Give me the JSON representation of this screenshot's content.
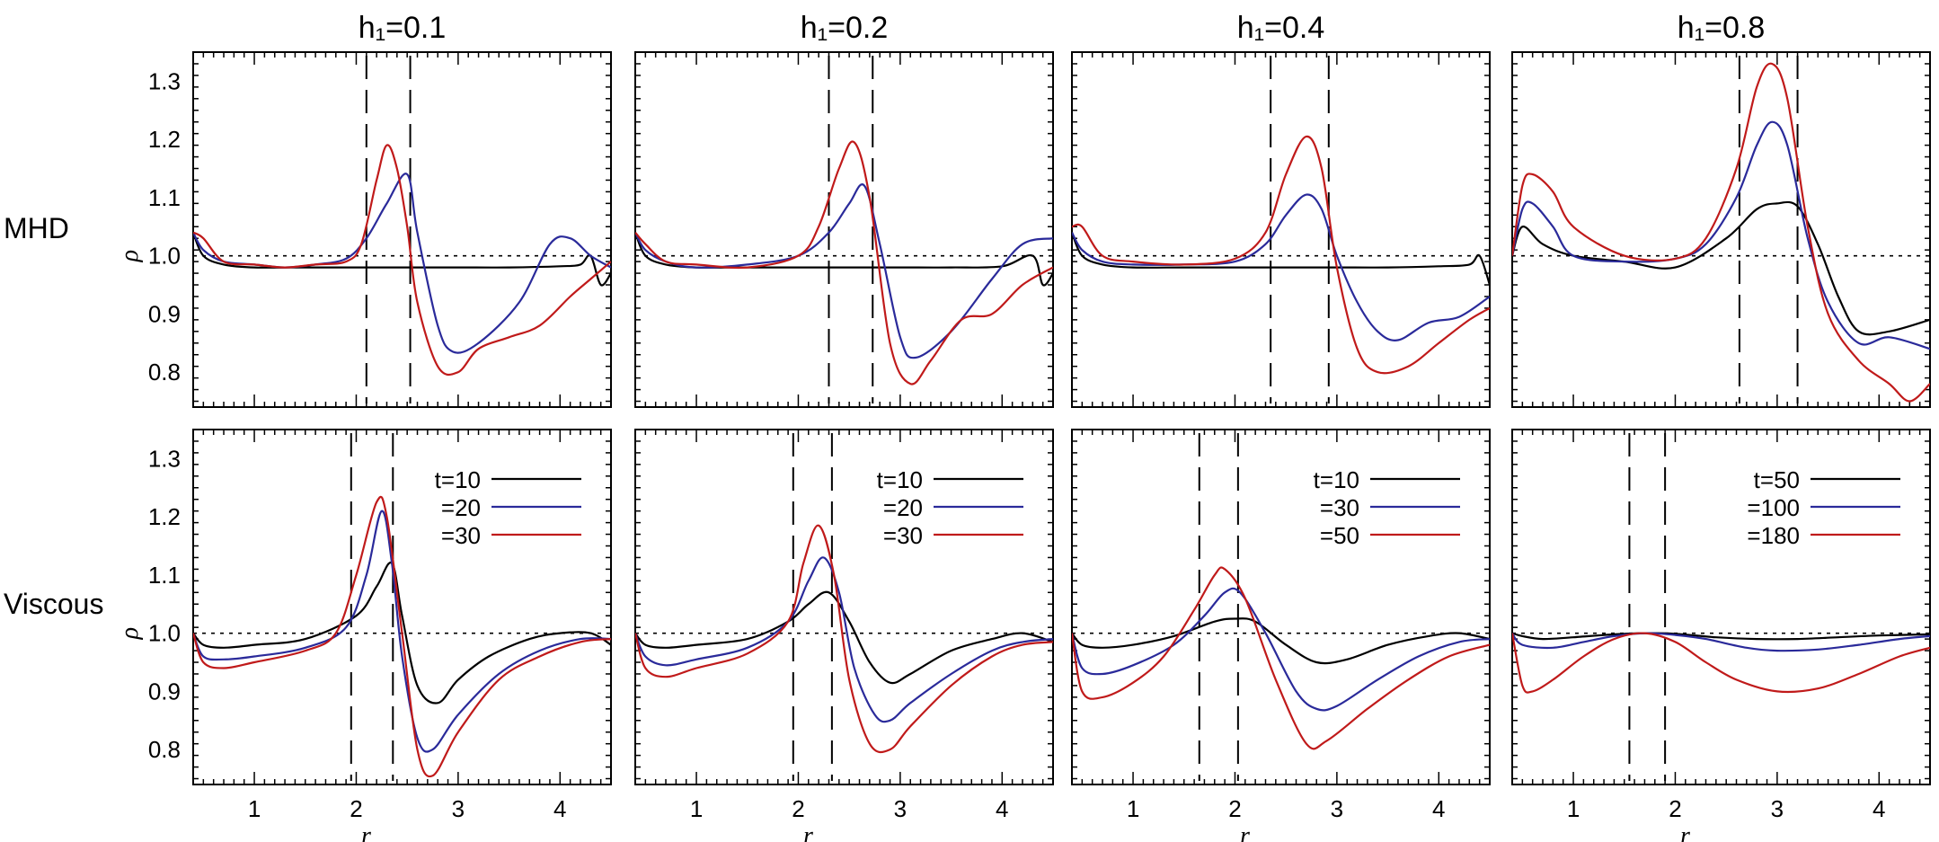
{
  "figure": {
    "row_labels": [
      "MHD",
      "Viscous"
    ],
    "column_titles": [
      "h₁=0.1",
      "h₁=0.2",
      "h₁=0.4",
      "h₁=0.8"
    ],
    "ylabel": "ρ",
    "xlabel": "r",
    "x_ticks": [
      "1",
      "2",
      "3",
      "4"
    ],
    "y_ticks": [
      "0.8",
      "0.9",
      "1.0",
      "1.1",
      "1.2",
      "1.3"
    ]
  },
  "colors": {
    "t1": "#000000",
    "t2": "#2a2a9a",
    "t3": "#c01a1a"
  },
  "chart_data": [
    {
      "type": "line",
      "row": "MHD",
      "title": "h₁=0.1",
      "xlim": [
        0.4,
        4.5
      ],
      "ylim": [
        0.74,
        1.35
      ],
      "reference_y": 1.0,
      "vlines": [
        2.1,
        2.53
      ],
      "series": [
        {
          "x": [
            0.4,
            0.5,
            0.7,
            1.0,
            1.5,
            2.0,
            2.5,
            3.0,
            3.5,
            4.0,
            4.2,
            4.3,
            4.4,
            4.5
          ],
          "y": [
            1.04,
            1.0,
            0.985,
            0.98,
            0.98,
            0.98,
            0.98,
            0.98,
            0.98,
            0.982,
            0.985,
            1.0,
            0.95,
            0.97
          ]
        },
        {
          "x": [
            0.4,
            0.5,
            0.7,
            1.0,
            1.3,
            1.6,
            1.9,
            2.1,
            2.3,
            2.5,
            2.6,
            2.8,
            2.95,
            3.2,
            3.6,
            3.9,
            4.1,
            4.3,
            4.5
          ],
          "y": [
            1.04,
            1.01,
            0.99,
            0.985,
            0.98,
            0.985,
            0.995,
            1.03,
            1.09,
            1.14,
            1.04,
            0.88,
            0.835,
            0.85,
            0.92,
            1.02,
            1.03,
            1.0,
            0.98
          ]
        },
        {
          "x": [
            0.4,
            0.5,
            0.7,
            1.0,
            1.3,
            1.6,
            1.9,
            2.05,
            2.2,
            2.3,
            2.4,
            2.5,
            2.6,
            2.8,
            3.0,
            3.2,
            3.5,
            3.8,
            4.1,
            4.3,
            4.5
          ],
          "y": [
            1.04,
            1.03,
            0.99,
            0.985,
            0.98,
            0.985,
            0.99,
            1.02,
            1.13,
            1.19,
            1.15,
            1.05,
            0.92,
            0.81,
            0.8,
            0.84,
            0.86,
            0.88,
            0.93,
            0.96,
            0.99
          ]
        }
      ]
    },
    {
      "type": "line",
      "row": "MHD",
      "title": "h₁=0.2",
      "xlim": [
        0.4,
        4.5
      ],
      "ylim": [
        0.74,
        1.35
      ],
      "reference_y": 1.0,
      "vlines": [
        2.3,
        2.73
      ],
      "series": [
        {
          "x": [
            0.4,
            0.5,
            0.7,
            1.0,
            1.5,
            2.0,
            2.5,
            3.0,
            3.5,
            4.0,
            4.3,
            4.4,
            4.5
          ],
          "y": [
            1.04,
            1.0,
            0.985,
            0.98,
            0.98,
            0.98,
            0.98,
            0.98,
            0.98,
            0.982,
            1.0,
            0.95,
            0.97
          ]
        },
        {
          "x": [
            0.4,
            0.5,
            0.7,
            1.0,
            1.5,
            2.0,
            2.3,
            2.5,
            2.65,
            2.8,
            3.0,
            3.15,
            3.5,
            3.9,
            4.2,
            4.5
          ],
          "y": [
            1.04,
            1.01,
            0.99,
            0.98,
            0.985,
            1.0,
            1.04,
            1.09,
            1.12,
            1.02,
            0.86,
            0.825,
            0.87,
            0.96,
            1.02,
            1.03
          ]
        },
        {
          "x": [
            0.4,
            0.5,
            0.7,
            1.0,
            1.5,
            2.0,
            2.2,
            2.4,
            2.55,
            2.7,
            2.9,
            3.1,
            3.3,
            3.6,
            3.9,
            4.2,
            4.5
          ],
          "y": [
            1.04,
            1.02,
            0.99,
            0.985,
            0.98,
            1.0,
            1.05,
            1.15,
            1.195,
            1.1,
            0.85,
            0.78,
            0.82,
            0.89,
            0.9,
            0.95,
            0.98
          ]
        }
      ]
    },
    {
      "type": "line",
      "row": "MHD",
      "title": "h₁=0.4",
      "xlim": [
        0.4,
        4.5
      ],
      "ylim": [
        0.74,
        1.35
      ],
      "reference_y": 1.0,
      "vlines": [
        2.35,
        2.92
      ],
      "series": [
        {
          "x": [
            0.4,
            0.5,
            0.7,
            1.0,
            1.5,
            2.0,
            2.5,
            3.0,
            3.5,
            4.0,
            4.3,
            4.4,
            4.5
          ],
          "y": [
            1.04,
            1.0,
            0.985,
            0.98,
            0.98,
            0.98,
            0.98,
            0.98,
            0.98,
            0.982,
            0.985,
            1.0,
            0.95
          ]
        },
        {
          "x": [
            0.4,
            0.5,
            0.7,
            1.0,
            1.5,
            2.0,
            2.3,
            2.5,
            2.7,
            2.85,
            3.0,
            3.2,
            3.4,
            3.6,
            3.9,
            4.2,
            4.5
          ],
          "y": [
            1.04,
            1.01,
            0.99,
            0.985,
            0.985,
            0.99,
            1.02,
            1.07,
            1.105,
            1.08,
            1.0,
            0.92,
            0.87,
            0.855,
            0.885,
            0.895,
            0.93
          ]
        },
        {
          "x": [
            0.4,
            0.5,
            0.7,
            1.0,
            1.5,
            2.0,
            2.3,
            2.5,
            2.7,
            2.85,
            3.0,
            3.2,
            3.4,
            3.7,
            4.0,
            4.3,
            4.5
          ],
          "y": [
            1.05,
            1.05,
            1.0,
            0.99,
            0.985,
            0.995,
            1.04,
            1.14,
            1.205,
            1.15,
            0.98,
            0.84,
            0.8,
            0.81,
            0.85,
            0.89,
            0.91
          ]
        }
      ]
    },
    {
      "type": "line",
      "row": "MHD",
      "title": "h₁=0.8",
      "xlim": [
        0.4,
        4.5
      ],
      "ylim": [
        0.74,
        1.35
      ],
      "reference_y": 1.0,
      "vlines": [
        2.63,
        3.2
      ],
      "series": [
        {
          "x": [
            0.4,
            0.5,
            0.7,
            1.0,
            1.5,
            2.0,
            2.5,
            2.8,
            3.0,
            3.2,
            3.4,
            3.6,
            3.8,
            4.1,
            4.5
          ],
          "y": [
            1.0,
            1.05,
            1.02,
            1.0,
            0.99,
            0.98,
            1.03,
            1.08,
            1.09,
            1.085,
            1.02,
            0.93,
            0.87,
            0.87,
            0.89
          ]
        },
        {
          "x": [
            0.4,
            0.5,
            0.6,
            0.8,
            1.0,
            1.5,
            2.0,
            2.3,
            2.6,
            2.8,
            2.95,
            3.1,
            3.3,
            3.5,
            3.8,
            4.1,
            4.5
          ],
          "y": [
            1.0,
            1.08,
            1.09,
            1.05,
            1.0,
            0.99,
            0.995,
            1.02,
            1.1,
            1.19,
            1.23,
            1.19,
            1.03,
            0.92,
            0.85,
            0.86,
            0.84
          ]
        },
        {
          "x": [
            0.4,
            0.5,
            0.6,
            0.8,
            1.0,
            1.5,
            2.0,
            2.3,
            2.6,
            2.8,
            2.95,
            3.1,
            3.3,
            3.5,
            3.8,
            4.1,
            4.3,
            4.5
          ],
          "y": [
            1.0,
            1.12,
            1.14,
            1.11,
            1.05,
            1.0,
            0.995,
            1.03,
            1.15,
            1.29,
            1.33,
            1.27,
            1.05,
            0.9,
            0.82,
            0.78,
            0.75,
            0.78
          ]
        }
      ]
    },
    {
      "type": "line",
      "row": "Viscous",
      "title": "h₁=0.1",
      "xlim": [
        0.4,
        4.5
      ],
      "ylim": [
        0.74,
        1.35
      ],
      "reference_y": 1.0,
      "vlines": [
        1.95,
        2.36
      ],
      "series": [
        {
          "name": "t=10",
          "x": [
            0.4,
            0.5,
            0.7,
            1.0,
            1.5,
            2.0,
            2.2,
            2.35,
            2.45,
            2.6,
            2.8,
            3.0,
            3.3,
            3.7,
            4.0,
            4.3,
            4.5
          ],
          "y": [
            1.0,
            0.98,
            0.975,
            0.98,
            0.99,
            1.03,
            1.08,
            1.12,
            1.03,
            0.91,
            0.88,
            0.92,
            0.96,
            0.99,
            1.0,
            1.0,
            0.98
          ]
        },
        {
          "name": "=20",
          "x": [
            0.4,
            0.5,
            0.7,
            1.0,
            1.5,
            1.9,
            2.1,
            2.25,
            2.35,
            2.45,
            2.6,
            2.75,
            3.0,
            3.4,
            3.8,
            4.2,
            4.5
          ],
          "y": [
            1.0,
            0.96,
            0.955,
            0.96,
            0.975,
            1.01,
            1.1,
            1.21,
            1.12,
            0.96,
            0.82,
            0.8,
            0.86,
            0.93,
            0.97,
            0.99,
            0.99
          ]
        },
        {
          "name": "=30",
          "x": [
            0.4,
            0.5,
            0.7,
            1.0,
            1.5,
            1.8,
            2.0,
            2.2,
            2.3,
            2.45,
            2.6,
            2.75,
            3.0,
            3.4,
            3.8,
            4.2,
            4.5
          ],
          "y": [
            1.0,
            0.95,
            0.94,
            0.95,
            0.97,
            1.0,
            1.1,
            1.225,
            1.2,
            1.0,
            0.8,
            0.755,
            0.83,
            0.92,
            0.96,
            0.985,
            0.99
          ]
        }
      ]
    },
    {
      "type": "line",
      "row": "Viscous",
      "title": "h₁=0.2",
      "xlim": [
        0.4,
        4.5
      ],
      "ylim": [
        0.74,
        1.35
      ],
      "reference_y": 1.0,
      "vlines": [
        1.95,
        2.33
      ],
      "series": [
        {
          "name": "t=10",
          "x": [
            0.4,
            0.5,
            0.7,
            1.0,
            1.5,
            1.9,
            2.1,
            2.3,
            2.5,
            2.7,
            2.9,
            3.1,
            3.5,
            3.9,
            4.2,
            4.5
          ],
          "y": [
            1.0,
            0.98,
            0.975,
            0.98,
            0.99,
            1.02,
            1.05,
            1.07,
            1.02,
            0.95,
            0.915,
            0.93,
            0.97,
            0.99,
            1.0,
            0.985
          ]
        },
        {
          "name": "=20",
          "x": [
            0.4,
            0.5,
            0.7,
            1.0,
            1.5,
            1.9,
            2.1,
            2.25,
            2.4,
            2.55,
            2.75,
            2.9,
            3.1,
            3.5,
            3.9,
            4.2,
            4.5
          ],
          "y": [
            1.0,
            0.96,
            0.945,
            0.955,
            0.975,
            1.02,
            1.09,
            1.13,
            1.07,
            0.94,
            0.86,
            0.85,
            0.88,
            0.93,
            0.97,
            0.985,
            0.99
          ]
        },
        {
          "name": "=30",
          "x": [
            0.4,
            0.5,
            0.7,
            1.0,
            1.5,
            1.9,
            2.05,
            2.2,
            2.35,
            2.5,
            2.7,
            2.9,
            3.1,
            3.5,
            3.9,
            4.2,
            4.5
          ],
          "y": [
            1.0,
            0.94,
            0.925,
            0.94,
            0.965,
            1.02,
            1.12,
            1.185,
            1.1,
            0.92,
            0.81,
            0.8,
            0.84,
            0.91,
            0.96,
            0.98,
            0.985
          ]
        }
      ]
    },
    {
      "type": "line",
      "row": "Viscous",
      "title": "h₁=0.4",
      "xlim": [
        0.4,
        4.5
      ],
      "ylim": [
        0.74,
        1.35
      ],
      "reference_y": 1.0,
      "vlines": [
        1.65,
        2.03
      ],
      "series": [
        {
          "name": "t=10",
          "x": [
            0.4,
            0.5,
            0.7,
            1.0,
            1.4,
            1.8,
            2.0,
            2.2,
            2.5,
            2.8,
            3.1,
            3.5,
            3.9,
            4.2,
            4.5
          ],
          "y": [
            1.0,
            0.98,
            0.975,
            0.98,
            0.995,
            1.02,
            1.025,
            1.02,
            0.98,
            0.95,
            0.955,
            0.98,
            0.995,
            1.0,
            0.99
          ]
        },
        {
          "name": "=30",
          "x": [
            0.4,
            0.5,
            0.7,
            1.0,
            1.4,
            1.7,
            1.9,
            2.05,
            2.3,
            2.6,
            2.8,
            3.0,
            3.4,
            3.8,
            4.2,
            4.5
          ],
          "y": [
            1.0,
            0.94,
            0.93,
            0.945,
            0.98,
            1.03,
            1.07,
            1.07,
            1.0,
            0.9,
            0.87,
            0.875,
            0.92,
            0.96,
            0.985,
            0.99
          ]
        },
        {
          "name": "=50",
          "x": [
            0.4,
            0.5,
            0.7,
            1.0,
            1.3,
            1.6,
            1.8,
            1.9,
            2.1,
            2.4,
            2.7,
            2.9,
            3.3,
            3.7,
            4.1,
            4.5
          ],
          "y": [
            1.0,
            0.9,
            0.89,
            0.915,
            0.96,
            1.04,
            1.1,
            1.11,
            1.06,
            0.92,
            0.81,
            0.815,
            0.87,
            0.92,
            0.96,
            0.98
          ]
        }
      ]
    },
    {
      "type": "line",
      "row": "Viscous",
      "title": "h₁=0.8",
      "xlim": [
        0.4,
        4.5
      ],
      "ylim": [
        0.74,
        1.35
      ],
      "reference_y": 1.0,
      "vlines": [
        1.55,
        1.9
      ],
      "series": [
        {
          "name": "t=50",
          "x": [
            0.4,
            0.5,
            0.7,
            1.0,
            1.4,
            1.7,
            2.0,
            2.4,
            2.8,
            3.2,
            3.6,
            4.0,
            4.5
          ],
          "y": [
            1.0,
            0.995,
            0.99,
            0.993,
            0.998,
            1.0,
            0.999,
            0.993,
            0.99,
            0.99,
            0.993,
            0.996,
            0.998
          ]
        },
        {
          "name": "=100",
          "x": [
            0.4,
            0.5,
            0.8,
            1.1,
            1.4,
            1.7,
            2.0,
            2.3,
            2.7,
            3.0,
            3.4,
            3.8,
            4.2,
            4.5
          ],
          "y": [
            1.0,
            0.98,
            0.975,
            0.985,
            0.995,
            1.0,
            0.997,
            0.99,
            0.975,
            0.97,
            0.972,
            0.98,
            0.99,
            0.995
          ]
        },
        {
          "name": "=180",
          "x": [
            0.4,
            0.5,
            0.6,
            0.8,
            1.1,
            1.4,
            1.7,
            2.0,
            2.3,
            2.6,
            3.0,
            3.4,
            3.8,
            4.2,
            4.5
          ],
          "y": [
            1.0,
            0.91,
            0.9,
            0.92,
            0.96,
            0.99,
            1.0,
            0.985,
            0.95,
            0.92,
            0.9,
            0.905,
            0.93,
            0.96,
            0.975
          ]
        }
      ]
    }
  ]
}
